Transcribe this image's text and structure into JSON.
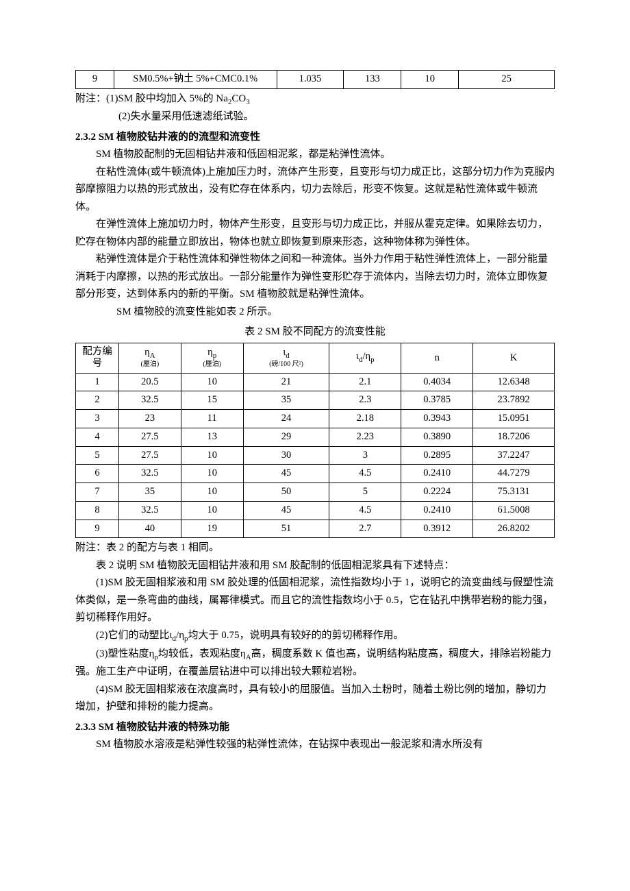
{
  "table1": {
    "row9": {
      "no": "9",
      "formula": "SM0.5%+钠土 5%+CMC0.1%",
      "c1": "1.035",
      "c2": "133",
      "c3": "10",
      "c4": "25"
    }
  },
  "note1": {
    "line1": "附注：(1)SM 胶中均加入 5%的 Na",
    "sub1": "2",
    "line1b": "CO",
    "sub2": "3",
    "line2": "(2)失水量采用低速滤纸试验。"
  },
  "h232": "2.3.2 SM 植物胶钻井液的的流型和流变性",
  "p1": "SM 植物胶配制的无固相钻井液和低固相泥浆，都是粘弹性流体。",
  "p2": "在粘性流体(或牛顿流体)上施加压力时，流体产生形变，且变形与切力成正比，这部分切力作为克服内部摩擦阻力以热的形式放出，没有贮存在体系内，切力去除后，形变不恢复。这就是粘性流体或牛顿流体。",
  "p3": "在弹性流体上施加切力时，物体产生形变，且变形与切力成正比，并服从霍克定律。如果除去切力，贮存在物体内部的能量立即放出，物体也就立即恢复到原来形态，这种物体称为弹性体。",
  "p4": "粘弹性流体是介于粘性流体和弹性物体之间和一种流体。当外力作用于粘性弹性流体上，一部分能量消耗于内摩擦，以热的形式放出。一部分能量作为弹性变形贮存于流体内，当除去切力时，流体立即恢复部分形变，达到体系内的新的平衡。SM 植物胶就是粘弹性流体。",
  "p5": "SM 植物胶的流变性能如表 2 所示。",
  "caption2": "表 2 SM 胶不同配方的流变性能",
  "table2": {
    "headers": {
      "h0": "配方编号",
      "h1a": "η",
      "h1sub": "A",
      "h1u": "(厘泊)",
      "h2a": "η",
      "h2sub": "p",
      "h2u": "(厘泊)",
      "h3a": "ι",
      "h3sub": "d",
      "h3u": "(磅/100 尺²)",
      "h4a": "ι",
      "h4sub1": "d",
      "h4b": "/η",
      "h4sub2": "p",
      "h5": "n",
      "h6": "K"
    },
    "rows": [
      {
        "c0": "1",
        "c1": "20.5",
        "c2": "10",
        "c3": "21",
        "c4": "2.1",
        "c5": "0.4034",
        "c6": "12.6348"
      },
      {
        "c0": "2",
        "c1": "32.5",
        "c2": "15",
        "c3": "35",
        "c4": "2.3",
        "c5": "0.3785",
        "c6": "23.7892"
      },
      {
        "c0": "3",
        "c1": "23",
        "c2": "11",
        "c3": "24",
        "c4": "2.18",
        "c5": "0.3943",
        "c6": "15.0951"
      },
      {
        "c0": "4",
        "c1": "27.5",
        "c2": "13",
        "c3": "29",
        "c4": "2.23",
        "c5": "0.3890",
        "c6": "18.7206"
      },
      {
        "c0": "5",
        "c1": "27.5",
        "c2": "10",
        "c3": "30",
        "c4": "3",
        "c5": "0.2895",
        "c6": "37.2247"
      },
      {
        "c0": "6",
        "c1": "32.5",
        "c2": "10",
        "c3": "45",
        "c4": "4.5",
        "c5": "0.2410",
        "c6": "44.7279"
      },
      {
        "c0": "7",
        "c1": "35",
        "c2": "10",
        "c3": "50",
        "c4": "5",
        "c5": "0.2224",
        "c6": "75.3131"
      },
      {
        "c0": "8",
        "c1": "32.5",
        "c2": "10",
        "c3": "45",
        "c4": "4.5",
        "c5": "0.2410",
        "c6": "61.5008"
      },
      {
        "c0": "9",
        "c1": "40",
        "c2": "19",
        "c3": "51",
        "c4": "2.7",
        "c5": "0.3912",
        "c6": "26.8202"
      }
    ]
  },
  "note2": "附注：表 2 的配方与表 1 相同。",
  "p6": "表 2 说明 SM 植物胶无固相钻井液和用 SM 胶配制的低固相泥浆具有下述特点：",
  "p7": "(1)SM 胶无固相浆液和用 SM 胶处理的低固相泥浆，流性指数均小于 1，说明它的流变曲线与假塑性流体类似，是一条弯曲的曲线，属幂律模式。而且它的流性指数均小于 0.5，它在钻孔中携带岩粉的能力强，剪切稀释作用好。",
  "p8a": "(2)它们的动塑比ι",
  "p8sub1": "d",
  "p8b": "/η",
  "p8sub2": "p",
  "p8c": "均大于 0.75，说明具有较好的的剪切稀释作用。",
  "p9a": "(3)塑性粘度η",
  "p9sub1": "p",
  "p9b": "均较低，表观粘度η",
  "p9sub2": "A",
  "p9c": "高，稠度系数 K 值也高，说明结构粘度高，稠度大，排除岩粉能力强。施工生产中证明，在覆盖层钻进中可以排出较大颗粒岩粉。",
  "p10": "(4)SM 胶无固相浆液在浓度高时，具有较小的屈服值。当加入土粉时，随着土粉比例的增加，静切力增加，护壁和排粉的能力提高。",
  "h233": "2.3.3 SM 植物胶钻井液的特殊功能",
  "p11": "SM 植物胶水溶液是粘弹性较强的粘弹性流体，在钻探中表现出一般泥浆和清水所没有"
}
